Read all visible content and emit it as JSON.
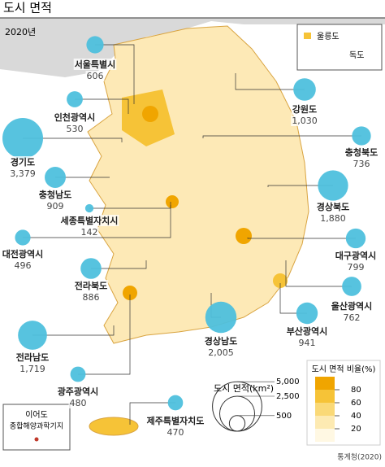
{
  "header": {
    "title": "도시 면적",
    "year": "2020년"
  },
  "regions": [
    {
      "name": "서울특별시",
      "area": 606
    },
    {
      "name": "인천광역시",
      "area": 530
    },
    {
      "name": "경기도",
      "area": {
        "value": 3379,
        "label": "3,379"
      }
    },
    {
      "name": "충청남도",
      "area": 909
    },
    {
      "name": "세종특별자치시",
      "area": 142
    },
    {
      "name": "대전광역시",
      "area": 496
    },
    {
      "name": "전라북도",
      "area": 886
    },
    {
      "name": "전라남도",
      "area": {
        "value": 1719,
        "label": "1,719"
      }
    },
    {
      "name": "광주광역시",
      "area": 480
    },
    {
      "name": "제주특별자치도",
      "area": 470
    },
    {
      "name": "강원도",
      "area": {
        "value": 1030,
        "label": "1,030"
      }
    },
    {
      "name": "충청북도",
      "area": 736
    },
    {
      "name": "경상북도",
      "area": {
        "value": 1880,
        "label": "1,880"
      }
    },
    {
      "name": "대구광역시",
      "area": 799
    },
    {
      "name": "울산광역시",
      "area": 762
    },
    {
      "name": "부산광역시",
      "area": 941
    },
    {
      "name": "경상남도",
      "area": {
        "value": 2005,
        "label": "2,005"
      }
    }
  ],
  "bubble_color": "#4ec0dd",
  "area_legend": {
    "title": "도시 면적(km²)",
    "sizes": [
      {
        "value": 5000,
        "label": "5,000"
      },
      {
        "value": 2500,
        "label": "2,500"
      },
      500
    ]
  },
  "ratio_legend": {
    "title": "도시 면적 비율(%)",
    "ticks": [
      80,
      60,
      40,
      20
    ],
    "colors": [
      "#f0a500",
      "#f6c337",
      "#fad977",
      "#fdeab2",
      "#fff8e3"
    ]
  },
  "inset": {
    "ulleungdo": "울릉도",
    "dokdo": "독도"
  },
  "ieodo": [
    "이어도",
    "종합해양과학기지"
  ],
  "source": "통계청(2020)"
}
